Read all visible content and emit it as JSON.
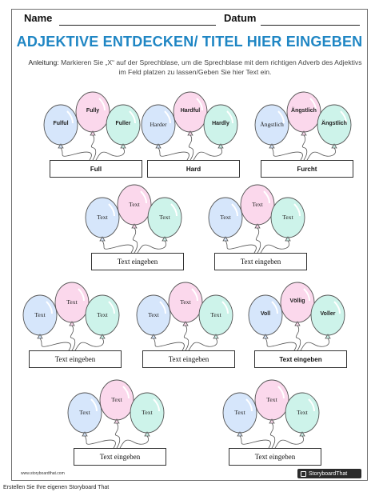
{
  "header": {
    "name_label": "Name",
    "date_label": "Datum"
  },
  "title": "ADJEKTIVE ENTDECKEN/ TITEL HIER EINGEBEN",
  "instructions": {
    "label": "Anleitung:",
    "text": "Markieren Sie „X“ auf der Sprechblase, um die Sprechblase mit dem richtigen Adverb des Adjektivs im Feld platzen zu lassen/Geben Sie hier Text ein."
  },
  "colors": {
    "blue": "#d6e6fb",
    "pink": "#fbd8ec",
    "green": "#cdf3ea",
    "title": "#1f86c4"
  },
  "groups": [
    {
      "balloons": [
        "Fulful",
        "Fully",
        "Fuller"
      ],
      "answer": "Full",
      "style": "bold"
    },
    {
      "balloons": [
        "Harder",
        "Hardful",
        "Hardly"
      ],
      "answer": "Hard",
      "style": "mixed"
    },
    {
      "balloons": [
        "Ängstlich",
        "Ängstlich",
        "Ängstlich"
      ],
      "answer": "Furcht",
      "style": "mixed2"
    },
    {
      "balloons": [
        "Text",
        "Text",
        "Text"
      ],
      "answer": "Text eingeben",
      "style": "serif"
    },
    {
      "balloons": [
        "Text",
        "Text",
        "Text"
      ],
      "answer": "Text eingeben",
      "style": "serif"
    },
    {
      "balloons": [
        "Text",
        "Text",
        "Text"
      ],
      "answer": "Text eingeben",
      "style": "serif"
    },
    {
      "balloons": [
        "Text",
        "Text",
        "Text"
      ],
      "answer": "Text eingeben",
      "style": "serif"
    },
    {
      "balloons": [
        "Voll",
        "Völlig",
        "Voller"
      ],
      "answer": "Text eingeben",
      "style": "bold"
    },
    {
      "balloons": [
        "Text",
        "Text",
        "Text"
      ],
      "answer": "Text eingeben",
      "style": "serif"
    },
    {
      "balloons": [
        "Text",
        "Text",
        "Text"
      ],
      "answer": "Text eingeben",
      "style": "serif"
    }
  ],
  "footer": {
    "url": "www.storyboardthat.com",
    "logo": "StoryboardThat",
    "caption": "Erstellen Sie Ihre eigenen Storyboard That"
  }
}
